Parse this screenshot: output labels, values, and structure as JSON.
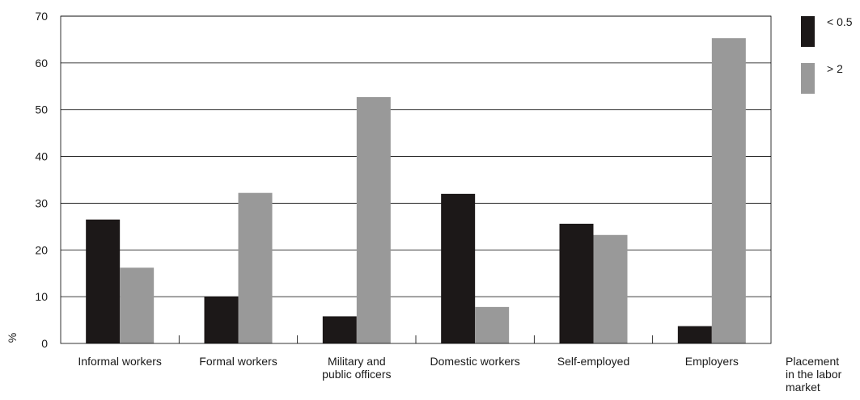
{
  "chart_data": {
    "type": "bar",
    "ylabel": "%",
    "xlabel_lines": [
      "Placement",
      "in the labor",
      "market"
    ],
    "ylim": [
      0,
      70
    ],
    "yticks": [
      0,
      10,
      20,
      30,
      40,
      50,
      60,
      70
    ],
    "grid": true,
    "legend_position": "right",
    "categories": [
      [
        "Informal workers"
      ],
      [
        "Formal workers"
      ],
      [
        "Military and",
        "public officers"
      ],
      [
        "Domestic workers"
      ],
      [
        "Self-employed"
      ],
      [
        "Employers"
      ]
    ],
    "series": [
      {
        "name": "< 0.5",
        "color": "#1c1818",
        "values": [
          26.5,
          10,
          5.8,
          32,
          25.6,
          3.7
        ]
      },
      {
        "name": "> 2",
        "color": "#999999",
        "values": [
          16.2,
          32.2,
          52.7,
          7.8,
          23.2,
          65.3
        ]
      }
    ]
  }
}
